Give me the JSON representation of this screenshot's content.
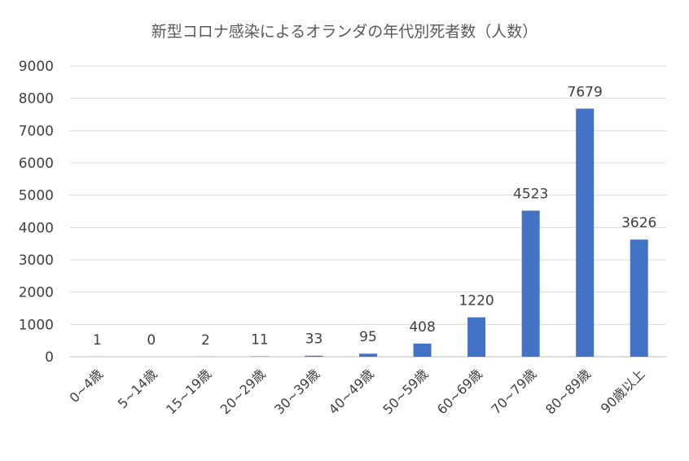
{
  "chart_data": {
    "type": "bar",
    "title": "新型コロナ感染によるオランダの年代別死者数（人数）",
    "categories": [
      "0~4歳",
      "5~14歳",
      "15~19歳",
      "20~29歳",
      "30~39歳",
      "40~49歳",
      "50~59歳",
      "60~69歳",
      "70~79歳",
      "80~89歳",
      "90歳以上"
    ],
    "values": [
      1,
      0,
      2,
      11,
      33,
      95,
      408,
      1220,
      4523,
      7679,
      3626
    ],
    "data_labels": [
      "1",
      "0",
      "2",
      "11",
      "33",
      "95",
      "408",
      "1220",
      "4523",
      "7679",
      "3626"
    ],
    "y_ticks": [
      "0",
      "1000",
      "2000",
      "3000",
      "4000",
      "5000",
      "6000",
      "7000",
      "8000",
      "9000"
    ],
    "ylim": [
      0,
      9000
    ],
    "grid": true,
    "legend": "none",
    "bar_color": "#4472c4"
  }
}
